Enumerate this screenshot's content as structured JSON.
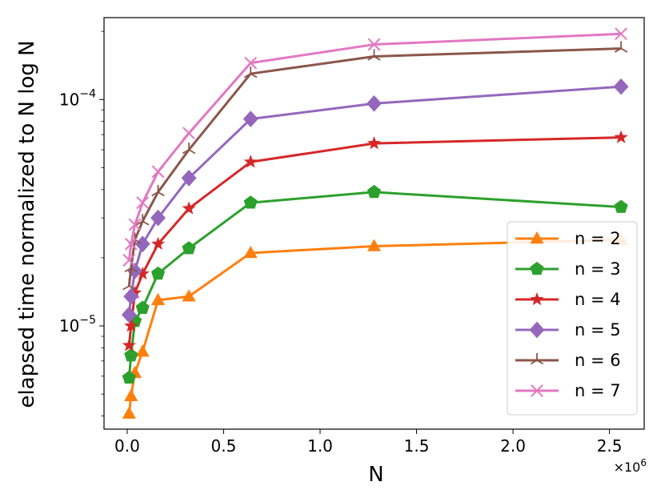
{
  "chart_data": {
    "type": "line",
    "title": "",
    "xlabel": "N",
    "ylabel": "elapsed time normalized to N log N",
    "x_multiplier": "×10",
    "x_multiplier_exp": "6",
    "x": [
      0.01,
      0.02,
      0.04,
      0.08,
      0.16,
      0.32,
      0.64,
      1.28,
      2.56
    ],
    "xlim": [
      -0.12,
      2.68
    ],
    "yscale": "log",
    "ylim": [
      3.5e-06,
      0.00023
    ],
    "xticks": [
      0.0,
      0.5,
      1.0,
      1.5,
      2.0,
      2.5
    ],
    "xtick_labels": [
      "0.0",
      "0.5",
      "1.0",
      "1.5",
      "2.0",
      "2.5"
    ],
    "yticks": [
      1e-05,
      0.0001
    ],
    "ytick_labels": [
      {
        "base": "10",
        "exp": "−5"
      },
      {
        "base": "10",
        "exp": "−4"
      }
    ],
    "grid": false,
    "legend_position": "lower-right",
    "series": [
      {
        "name": "n = 2",
        "color": "#ff7f0e",
        "marker": "triangle-up",
        "values": [
          4.1e-06,
          4.9e-06,
          6.2e-06,
          7.7e-06,
          1.3e-05,
          1.35e-05,
          2.1e-05,
          2.25e-05,
          2.4e-05
        ]
      },
      {
        "name": "n = 3",
        "color": "#2ca02c",
        "marker": "pentagon",
        "values": [
          5.9e-06,
          7.4e-06,
          1.05e-05,
          1.2e-05,
          1.7e-05,
          2.2e-05,
          3.5e-05,
          3.9e-05,
          3.35e-05
        ]
      },
      {
        "name": "n = 4",
        "color": "#d62728",
        "marker": "star",
        "values": [
          8.2e-06,
          1e-05,
          1.4e-05,
          1.7e-05,
          2.3e-05,
          3.3e-05,
          5.3e-05,
          6.4e-05,
          6.8e-05
        ]
      },
      {
        "name": "n = 5",
        "color": "#9467bd",
        "marker": "diamond",
        "values": [
          1.12e-05,
          1.35e-05,
          1.75e-05,
          2.3e-05,
          3e-05,
          4.5e-05,
          8.2e-05,
          9.6e-05,
          0.000114
        ]
      },
      {
        "name": "n = 6",
        "color": "#8c564b",
        "marker": "tri-down",
        "values": [
          1.5e-05,
          1.8e-05,
          2.4e-05,
          2.9e-05,
          3.9e-05,
          6e-05,
          0.00013,
          0.000155,
          0.000168
        ]
      },
      {
        "name": "n = 7",
        "color": "#e377c2",
        "marker": "x",
        "values": [
          1.95e-05,
          2.3e-05,
          2.8e-05,
          3.5e-05,
          4.8e-05,
          7.1e-05,
          0.000145,
          0.000175,
          0.000195
        ]
      }
    ]
  }
}
